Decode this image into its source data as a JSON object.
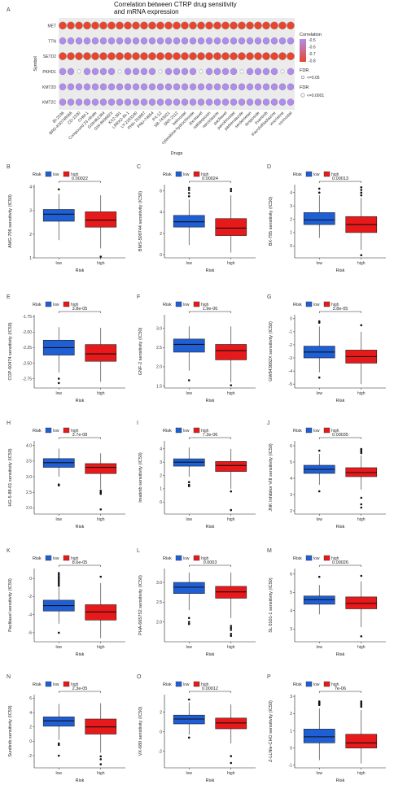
{
  "chart_data": [
    {
      "panel": "A",
      "type": "dotplot",
      "title": "Correlation between CTRP drug sensitivity and mRNA expression",
      "xlabel": "Drugs",
      "ylabel": "Symbol",
      "genes": [
        "MET",
        "TTN",
        "SETD2",
        "PKHD1",
        "KMT2D",
        "KMT2C"
      ],
      "drugs": [
        "BI-2536",
        "BRD-K30748066",
        "CD-1530",
        "CHM-1",
        "Compound 23 citrate",
        "GSK461364",
        "GW-843682X",
        "KX2-391",
        "LRRK2-IN-1",
        "LY-2183240",
        "PHA-793887",
        "PNU-74654",
        "PX-12",
        "SB-743921",
        "SNX-2112",
        "belinostat",
        "cytarabine hydrochloride",
        "docetaxel",
        "nakiterpiosin",
        "narciclasine",
        "paclitaxel",
        "panobinostat",
        "parbendazole",
        "serdemetan",
        "teniposide",
        "tivantinib",
        "triazolothiadiazine",
        "vincristine",
        "vorinostat"
      ],
      "correlation_rows": [
        -0.78,
        -0.22,
        -0.72,
        -0.25,
        -0.3,
        -0.28
      ],
      "legend": {
        "color_title": "Correlation",
        "color_ticks": [
          "-0.5",
          "-0.6",
          "-0.7",
          "-0.8"
        ],
        "size_title_1": "FDR",
        "size_label_1": "<=0.05",
        "size_title_2": "FDR",
        "size_label_2": "<=0.0001"
      }
    },
    {
      "panel": "B",
      "type": "box",
      "ylabel": "AMG-706 sensitivity (IC50)",
      "xlabel": "Risk",
      "categories": [
        "low",
        "high"
      ],
      "legend_title": "Risk",
      "legend_items": [
        "low",
        "high"
      ],
      "pvalue": "0.00022",
      "ylim": [
        1.0,
        4.1
      ],
      "yticks": [
        "1",
        "2",
        "3",
        "4"
      ],
      "boxes": [
        {
          "q1": 2.55,
          "median": 2.85,
          "q3": 3.05,
          "whisker_low": 1.75,
          "whisker_high": 3.7,
          "outliers": [
            3.9
          ]
        },
        {
          "q1": 2.3,
          "median": 2.6,
          "q3": 2.95,
          "whisker_low": 1.4,
          "whisker_high": 3.65,
          "outliers": [
            1.05
          ]
        }
      ]
    },
    {
      "panel": "C",
      "type": "box",
      "ylabel": "BMS-509744 sensitivity (IC50)",
      "xlabel": "Risk",
      "categories": [
        "low",
        "high"
      ],
      "legend_title": "Risk",
      "legend_items": [
        "low",
        "high"
      ],
      "pvalue": "0.00024",
      "ylim": [
        -0.3,
        6.6
      ],
      "yticks": [
        "0",
        "2",
        "4",
        "6"
      ],
      "boxes": [
        {
          "q1": 2.6,
          "median": 3.1,
          "q3": 3.7,
          "whisker_low": 0.9,
          "whisker_high": 5.2,
          "outliers": [
            5.5,
            5.8,
            6.1,
            6.3
          ]
        },
        {
          "q1": 1.8,
          "median": 2.5,
          "q3": 3.4,
          "whisker_low": 0.2,
          "whisker_high": 5.6,
          "outliers": [
            6.0,
            6.2
          ]
        }
      ]
    },
    {
      "panel": "D",
      "type": "box",
      "ylabel": "BX-795 sensitivity (IC50)",
      "xlabel": "Risk",
      "categories": [
        "low",
        "high"
      ],
      "legend_title": "Risk",
      "legend_items": [
        "low",
        "high"
      ],
      "pvalue": "0.00013",
      "ylim": [
        -0.9,
        4.6
      ],
      "yticks": [
        "0",
        "1",
        "2",
        "3",
        "4"
      ],
      "boxes": [
        {
          "q1": 1.6,
          "median": 1.95,
          "q3": 2.5,
          "whisker_low": 0.6,
          "whisker_high": 3.8,
          "outliers": [
            4.0,
            4.3
          ]
        },
        {
          "q1": 1.0,
          "median": 1.6,
          "q3": 2.2,
          "whisker_low": -0.3,
          "whisker_high": 3.6,
          "outliers": [
            3.8,
            4.0,
            4.2,
            4.4,
            -0.7
          ]
        }
      ]
    },
    {
      "panel": "E",
      "type": "box",
      "ylabel": "COP-60474 sensitivity (IC50)",
      "xlabel": "Risk",
      "categories": [
        "low",
        "high"
      ],
      "legend_title": "Risk",
      "legend_items": [
        "low",
        "high"
      ],
      "pvalue": "3.8e-05",
      "ylim": [
        -2.9,
        -1.72
      ],
      "yticks": [
        "-1.75",
        "-2.00",
        "-2.25",
        "-2.50",
        "-2.75"
      ],
      "boxes": [
        {
          "q1": -2.37,
          "median": -2.25,
          "q3": -2.13,
          "whisker_low": -2.65,
          "whisker_high": -1.92,
          "outliers": [
            -2.75,
            -2.82
          ]
        },
        {
          "q1": -2.47,
          "median": -2.35,
          "q3": -2.2,
          "whisker_low": -2.8,
          "whisker_high": -1.93,
          "outliers": []
        }
      ]
    },
    {
      "panel": "F",
      "type": "box",
      "ylabel": "GNF-2 sensitivity (IC50)",
      "xlabel": "Risk",
      "categories": [
        "low",
        "high"
      ],
      "legend_title": "Risk",
      "legend_items": [
        "low",
        "high"
      ],
      "pvalue": "1.9e-06",
      "ylim": [
        1.45,
        3.35
      ],
      "yticks": [
        "1.5",
        "2.0",
        "2.5",
        "3.0"
      ],
      "boxes": [
        {
          "q1": 2.38,
          "median": 2.58,
          "q3": 2.72,
          "whisker_low": 1.9,
          "whisker_high": 3.05,
          "outliers": [
            1.65
          ]
        },
        {
          "q1": 2.18,
          "median": 2.42,
          "q3": 2.58,
          "whisker_low": 1.6,
          "whisker_high": 3.05,
          "outliers": [
            1.52
          ]
        }
      ]
    },
    {
      "panel": "G",
      "type": "box",
      "ylabel": "GW843682X sensitivity (IC50)",
      "xlabel": "Risk",
      "categories": [
        "low",
        "high"
      ],
      "legend_title": "Risk",
      "legend_items": [
        "low",
        "high"
      ],
      "pvalue": "3.8e-05",
      "ylim": [
        -5.3,
        0.3
      ],
      "yticks": [
        "0",
        "-1",
        "-2",
        "-3",
        "-4",
        "-5"
      ],
      "boxes": [
        {
          "q1": -3.0,
          "median": -2.55,
          "q3": -2.1,
          "whisker_low": -4.1,
          "whisker_high": -0.6,
          "outliers": [
            -0.2,
            -0.3,
            -4.5
          ]
        },
        {
          "q1": -3.4,
          "median": -2.9,
          "q3": -2.4,
          "whisker_low": -5.0,
          "whisker_high": -1.0,
          "outliers": [
            -0.5
          ]
        }
      ]
    },
    {
      "panel": "H",
      "type": "box",
      "ylabel": "HG-5-88-01 sensitivity (IC50)",
      "xlabel": "Risk",
      "categories": [
        "low",
        "high"
      ],
      "legend_title": "Risk",
      "legend_items": [
        "low",
        "high"
      ],
      "pvalue": "3.7e-08",
      "ylim": [
        1.8,
        4.15
      ],
      "yticks": [
        "2.0",
        "2.5",
        "3.0",
        "3.5",
        "4.0"
      ],
      "boxes": [
        {
          "q1": 3.3,
          "median": 3.45,
          "q3": 3.58,
          "whisker_low": 3.0,
          "whisker_high": 3.9,
          "outliers": [
            2.75,
            2.72
          ]
        },
        {
          "q1": 3.1,
          "median": 3.3,
          "q3": 3.42,
          "whisker_low": 2.6,
          "whisker_high": 3.75,
          "outliers": [
            2.45,
            2.5,
            2.55,
            1.95
          ]
        }
      ]
    },
    {
      "panel": "I",
      "type": "box",
      "ylabel": "Imatinib sensitivity (IC50)",
      "xlabel": "Risk",
      "categories": [
        "low",
        "high"
      ],
      "legend_title": "Risk",
      "legend_items": [
        "low",
        "high"
      ],
      "pvalue": "7.3e-06",
      "ylim": [
        -0.9,
        4.6
      ],
      "yticks": [
        "0",
        "1",
        "2",
        "3",
        "4"
      ],
      "boxes": [
        {
          "q1": 2.7,
          "median": 3.0,
          "q3": 3.25,
          "whisker_low": 1.9,
          "whisker_high": 4.1,
          "outliers": [
            1.5,
            1.3,
            1.2
          ]
        },
        {
          "q1": 2.3,
          "median": 2.75,
          "q3": 3.05,
          "whisker_low": 1.0,
          "whisker_high": 4.0,
          "outliers": [
            0.8,
            -0.6
          ]
        }
      ]
    },
    {
      "panel": "J",
      "type": "box",
      "ylabel": "JNK Inhibitor VIII sensitivity (IC50)",
      "xlabel": "Risk",
      "categories": [
        "low",
        "high"
      ],
      "legend_title": "Risk",
      "legend_items": [
        "low",
        "high"
      ],
      "pvalue": "0.00035",
      "ylim": [
        1.8,
        6.3
      ],
      "yticks": [
        "2",
        "3",
        "4",
        "5",
        "6"
      ],
      "boxes": [
        {
          "q1": 4.3,
          "median": 4.55,
          "q3": 4.8,
          "whisker_low": 3.6,
          "whisker_high": 5.5,
          "outliers": [
            5.7,
            3.2
          ]
        },
        {
          "q1": 4.1,
          "median": 4.35,
          "q3": 4.65,
          "whisker_low": 3.3,
          "whisker_high": 5.4,
          "outliers": [
            5.55,
            5.65,
            5.75,
            5.8,
            2.8,
            2.4,
            2.2
          ]
        }
      ]
    },
    {
      "panel": "K",
      "type": "box",
      "ylabel": "Paclitaxel sensitivity (IC50)",
      "xlabel": "Risk",
      "categories": [
        "low",
        "high"
      ],
      "legend_title": "Risk",
      "legend_items": [
        "low",
        "high"
      ],
      "pvalue": "8.6e-05",
      "ylim": [
        -7.0,
        1.1
      ],
      "yticks": [
        "0",
        "-2",
        "-4",
        "-6"
      ],
      "boxes": [
        {
          "q1": -3.6,
          "median": -3.0,
          "q3": -2.4,
          "whisker_low": -5.0,
          "whisker_high": -1.0,
          "outliers": [
            -0.8,
            -0.6,
            -0.4,
            -0.2,
            0.0,
            0.2,
            0.4,
            0.6,
            -6.0
          ]
        },
        {
          "q1": -4.6,
          "median": -3.7,
          "q3": -2.9,
          "whisker_low": -6.6,
          "whisker_high": -0.5,
          "outliers": [
            0.2
          ]
        }
      ]
    },
    {
      "panel": "L",
      "type": "box",
      "ylabel": "PHA-665752 sensitivity (IC50)",
      "xlabel": "Risk",
      "categories": [
        "low",
        "high"
      ],
      "legend_title": "Risk",
      "legend_items": [
        "low",
        "high"
      ],
      "pvalue": "0.0003",
      "ylim": [
        1.5,
        3.35
      ],
      "yticks": [
        "2.0",
        "2.5",
        "3.0"
      ],
      "boxes": [
        {
          "q1": 2.72,
          "median": 2.88,
          "q3": 3.0,
          "whisker_low": 2.3,
          "whisker_high": 3.25,
          "outliers": [
            2.1,
            2.0,
            1.95
          ]
        },
        {
          "q1": 2.6,
          "median": 2.76,
          "q3": 2.9,
          "whisker_low": 2.1,
          "whisker_high": 3.25,
          "outliers": [
            1.9,
            1.85,
            1.8,
            1.7,
            1.65
          ]
        }
      ]
    },
    {
      "panel": "M",
      "type": "box",
      "ylabel": "SL 0101-1 sensitivity (IC50)",
      "xlabel": "Risk",
      "categories": [
        "low",
        "high"
      ],
      "legend_title": "Risk",
      "legend_items": [
        "low",
        "high"
      ],
      "pvalue": "0.00026",
      "ylim": [
        2.3,
        6.3
      ],
      "yticks": [
        "3",
        "4",
        "5",
        "6"
      ],
      "boxes": [
        {
          "q1": 4.35,
          "median": 4.6,
          "q3": 4.8,
          "whisker_low": 3.8,
          "whisker_high": 5.4,
          "outliers": [
            5.85
          ]
        },
        {
          "q1": 4.1,
          "median": 4.4,
          "q3": 4.75,
          "whisker_low": 3.1,
          "whisker_high": 5.6,
          "outliers": [
            5.9,
            2.6
          ]
        }
      ]
    },
    {
      "panel": "N",
      "type": "box",
      "ylabel": "Sunitinib sensitivity (IC50)",
      "xlabel": "Risk",
      "categories": [
        "low",
        "high"
      ],
      "legend_title": "Risk",
      "legend_items": [
        "low",
        "high"
      ],
      "pvalue": "2.3e-05",
      "ylim": [
        -3.7,
        6.5
      ],
      "yticks": [
        "-2",
        "0",
        "2",
        "4",
        "6"
      ],
      "boxes": [
        {
          "q1": 2.1,
          "median": 2.85,
          "q3": 3.4,
          "whisker_low": 0.2,
          "whisker_high": 5.2,
          "outliers": [
            -0.3,
            -0.5,
            -2.0
          ]
        },
        {
          "q1": 1.0,
          "median": 2.0,
          "q3": 3.1,
          "whisker_low": -1.6,
          "whisker_high": 5.3,
          "outliers": [
            -2.1,
            -2.5,
            -3.2
          ]
        }
      ]
    },
    {
      "panel": "O",
      "type": "box",
      "ylabel": "VX-680 sensitivity (IC50)",
      "xlabel": "Risk",
      "categories": [
        "low",
        "high"
      ],
      "legend_title": "Risk",
      "legend_items": [
        "low",
        "high"
      ],
      "pvalue": "0.00012",
      "ylim": [
        -3.7,
        3.8
      ],
      "yticks": [
        "-2",
        "0",
        "2"
      ],
      "boxes": [
        {
          "q1": 0.8,
          "median": 1.3,
          "q3": 1.7,
          "whisker_low": -0.3,
          "whisker_high": 3.0,
          "outliers": [
            3.3,
            -0.6
          ]
        },
        {
          "q1": 0.3,
          "median": 0.9,
          "q3": 1.4,
          "whisker_low": -1.2,
          "whisker_high": 2.8,
          "outliers": [
            -2.5,
            -3.2
          ]
        }
      ]
    },
    {
      "panel": "P",
      "type": "box",
      "ylabel": "Z-LLNle-CHO sensitivity (IC50)",
      "xlabel": "Risk",
      "categories": [
        "low",
        "high"
      ],
      "legend_title": "Risk",
      "legend_items": [
        "low",
        "high"
      ],
      "pvalue": "7e-06",
      "ylim": [
        -1.15,
        3.1
      ],
      "yticks": [
        "-1",
        "0",
        "1",
        "2",
        "3"
      ],
      "boxes": [
        {
          "q1": 0.3,
          "median": 0.65,
          "q3": 1.1,
          "whisker_low": -0.7,
          "whisker_high": 2.3,
          "outliers": [
            2.5,
            2.55,
            2.6,
            2.65,
            2.7
          ]
        },
        {
          "q1": 0.0,
          "median": 0.3,
          "q3": 0.8,
          "whisker_low": -0.9,
          "whisker_high": 2.2,
          "outliers": [
            2.4,
            2.5,
            2.6,
            2.7
          ]
        }
      ]
    }
  ],
  "colors": {
    "low": "#1e5fd6",
    "high": "#e8191b",
    "cor_low": "#e8452c",
    "cor_high": "#b18cf0"
  }
}
